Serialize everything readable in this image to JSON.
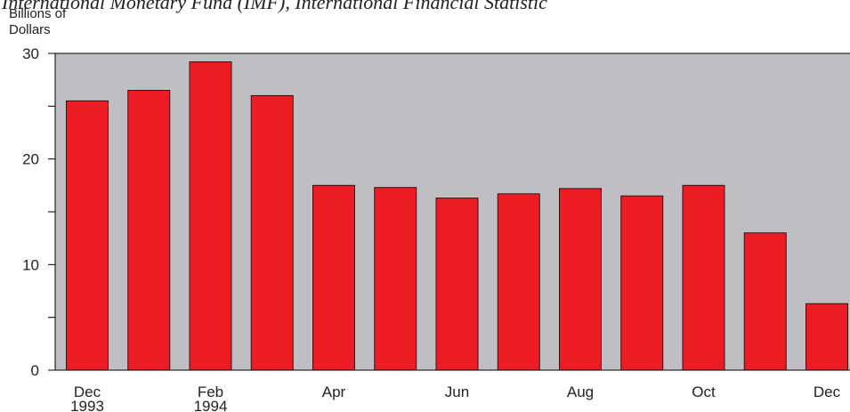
{
  "chart_data": {
    "type": "bar",
    "note": "International Monetary Fund (IMF), International Financial Statistic",
    "y_axis_label": [
      "Billions of",
      "Dollars"
    ],
    "categories": [
      "Dec 1993",
      null,
      "Feb 1994",
      null,
      "Apr",
      null,
      "Jun",
      null,
      "Aug",
      null,
      "Oct",
      null,
      "Dec"
    ],
    "values": [
      25.5,
      26.5,
      29.2,
      26.0,
      17.5,
      17.3,
      16.3,
      16.7,
      17.2,
      16.5,
      17.5,
      13.0,
      6.3
    ],
    "color": "#ed1c24",
    "ylim": [
      0,
      30
    ],
    "yticks": [
      0,
      10,
      20,
      30
    ],
    "minor_yticks": [
      5,
      15,
      25
    ],
    "plot_background": "#bebec3"
  }
}
